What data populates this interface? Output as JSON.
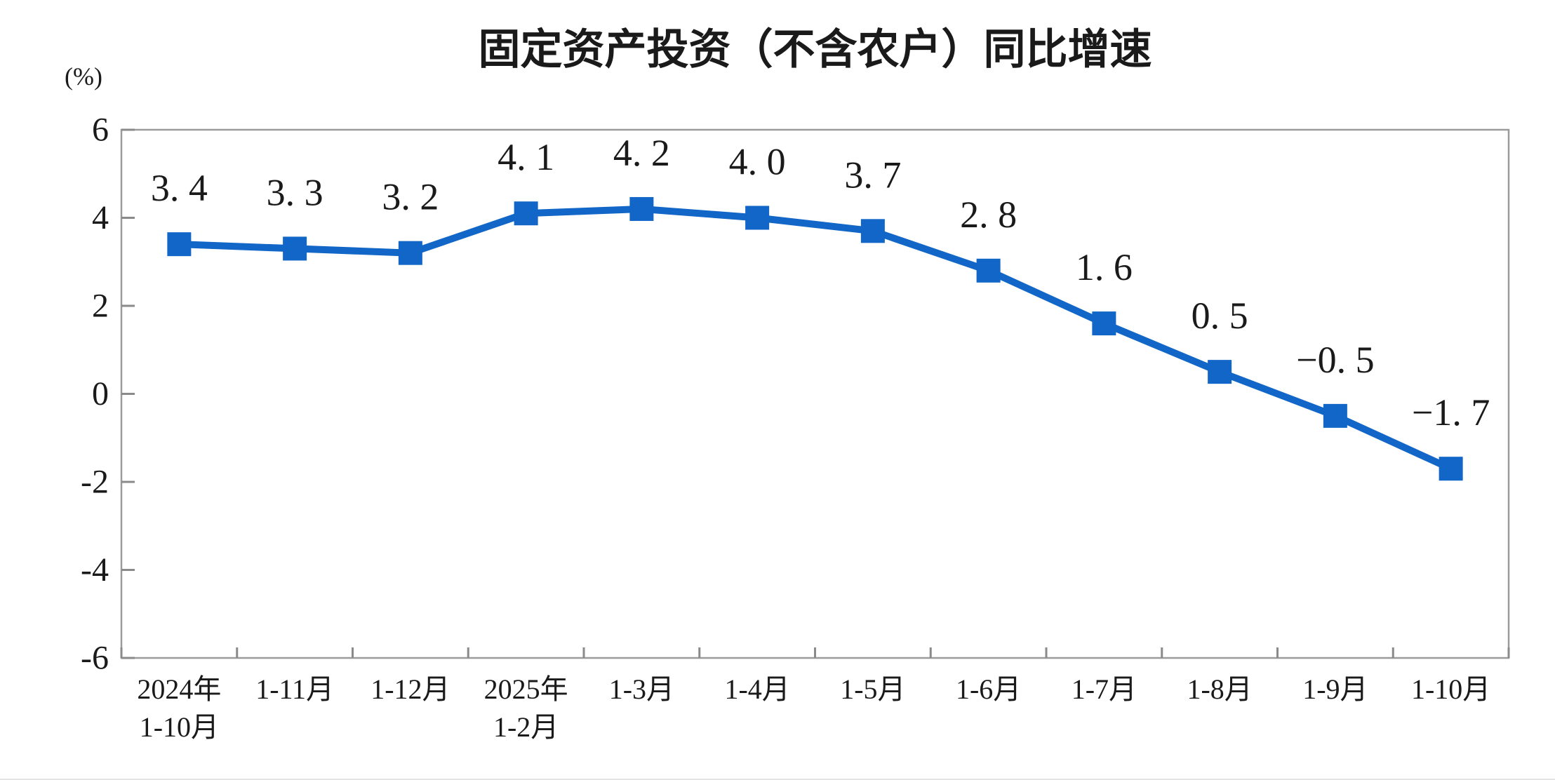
{
  "chart_data": {
    "type": "line",
    "title": "固定资产投资（不含农户）同比增速",
    "unit_label": "(%)",
    "xlabel": "",
    "ylabel": "(%)",
    "categories": [
      "2024年\n1-10月",
      "1-11月",
      "1-12月",
      "2025年\n1-2月",
      "1-3月",
      "1-4月",
      "1-5月",
      "1-6月",
      "1-7月",
      "1-8月",
      "1-9月",
      "1-10月"
    ],
    "series": [
      {
        "name": "固定资产投资（不含农户）同比增速",
        "values": [
          3.4,
          3.3,
          3.2,
          4.1,
          4.2,
          4.0,
          3.7,
          2.8,
          1.6,
          0.5,
          -0.5,
          -1.7
        ]
      }
    ],
    "point_labels": [
      "3. 4",
      "3. 3",
      "3. 2",
      "4. 1",
      "4. 2",
      "4. 0",
      "3. 7",
      "2. 8",
      "1. 6",
      "0. 5",
      "−0. 5",
      "−1. 7"
    ],
    "ylim": [
      -6,
      6
    ],
    "yticks": [
      6,
      4,
      2,
      0,
      -2,
      -4,
      -6
    ],
    "grid": false,
    "legend_position": "none",
    "marker": "square",
    "line_color": "#1166c7",
    "marker_color": "#1166c7",
    "axis_color": "#9b9b9b",
    "tick_color": "#8a8a8a",
    "text_color": "#1a1a1a"
  }
}
